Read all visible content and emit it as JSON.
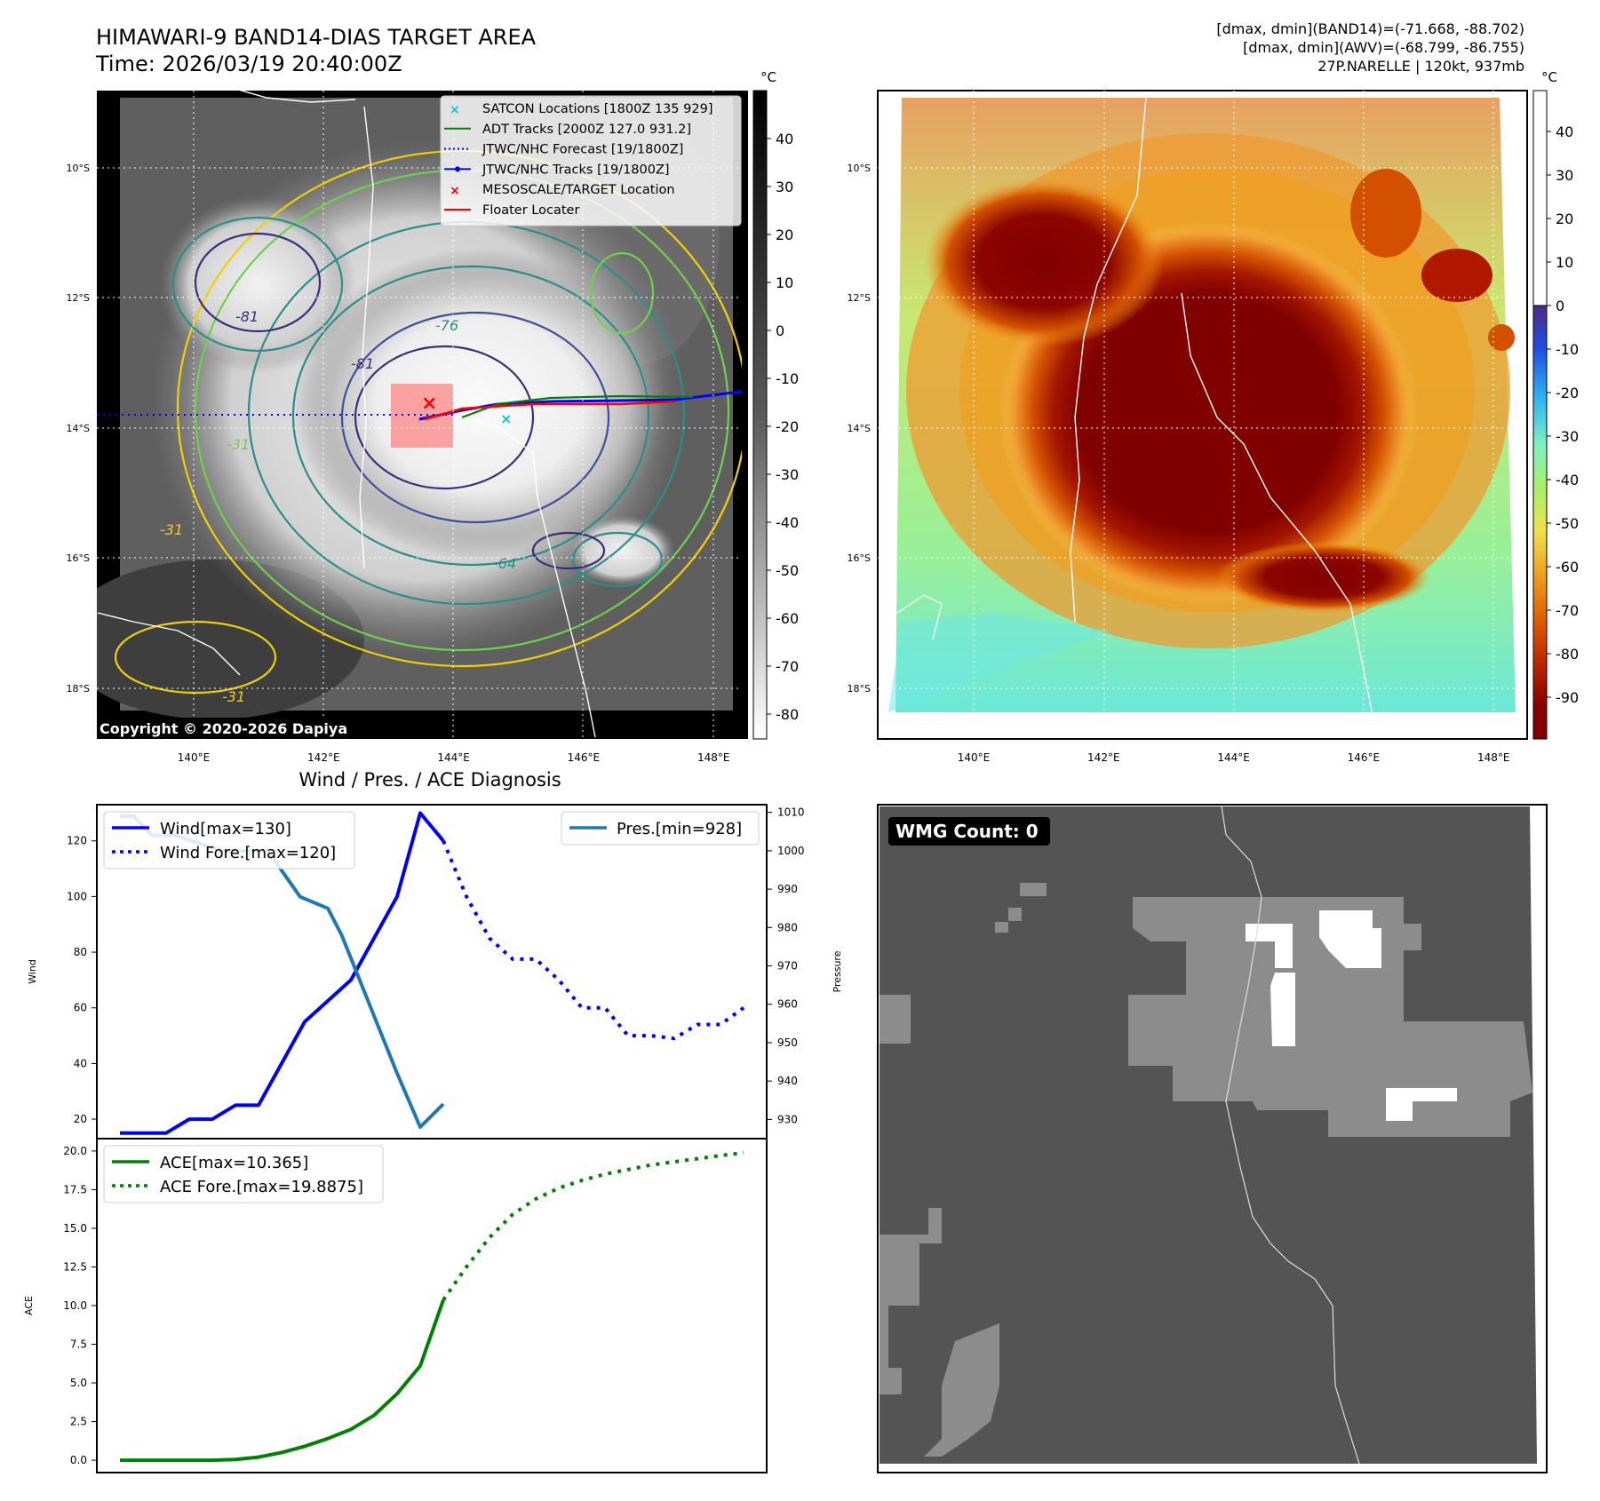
{
  "header": {
    "title_line1": "HIMAWARI-9 BAND14-DIAS TARGET AREA",
    "title_line2": "Time: 2026/03/19 20:40:00Z",
    "stats_line1": "[dmax, dmin](BAND14)=(-71.668, -88.702)",
    "stats_line2": "[dmax, dmin](AWV)=(-68.799, -86.755)",
    "stats_line3": "27P.NARELLE | 120kt, 937mb"
  },
  "map_axes": {
    "lat_labels": [
      "10°S",
      "12°S",
      "14°S",
      "16°S",
      "18°S"
    ],
    "lon_labels": [
      "140°E",
      "142°E",
      "144°E",
      "146°E",
      "148°E"
    ]
  },
  "band14_panel": {
    "copyright": "Copyright © 2020-2026 Dapiya",
    "colorbar_unit": "°C",
    "colorbar_ticks": [
      40,
      30,
      20,
      10,
      0,
      -10,
      -20,
      -30,
      -40,
      -50,
      -60,
      -70,
      -80
    ],
    "contour_labels": [
      "-81",
      "-81",
      "-76",
      "-64",
      "-31",
      "-31",
      "-31"
    ],
    "legend": [
      {
        "label": "SATCON Locations [1800Z 135 929]",
        "color": "#17becf",
        "marker": "x"
      },
      {
        "label": "ADT Tracks [2000Z 127.0 931.2]",
        "color": "#008000",
        "marker": "line"
      },
      {
        "label": "JTWC/NHC Forecast [19/1800Z]",
        "color": "#0000ff",
        "marker": "dotted"
      },
      {
        "label": "JTWC/NHC Tracks [19/1800Z]",
        "color": "#0000ff",
        "marker": "line-dot"
      },
      {
        "label": "MESOSCALE/TARGET Location",
        "color": "#ff0000",
        "marker": "x"
      },
      {
        "label": "Floater Locater",
        "color": "#ff0000",
        "marker": "line"
      }
    ]
  },
  "awv_panel": {
    "colorbar_unit": "°C",
    "colorbar_ticks": [
      40,
      30,
      20,
      10,
      0,
      -10,
      -20,
      -30,
      -40,
      -50,
      -60,
      -70,
      -80,
      -90
    ]
  },
  "wmg_panel": {
    "badge": "WMG Count: 0"
  },
  "chart_data": [
    {
      "type": "line",
      "title": "Wind / Pres. / ACE Diagnosis",
      "ylabel": "Wind",
      "y2label": "Pressure",
      "ylim": [
        13,
        133
      ],
      "y2lim": [
        925,
        1012
      ],
      "yticks": [
        20,
        40,
        60,
        80,
        100,
        120
      ],
      "y2ticks": [
        930,
        940,
        950,
        960,
        970,
        980,
        990,
        1000,
        1010
      ],
      "grid": false,
      "legend_left": [
        "Wind[max=130]",
        "Wind Fore.[max=120]"
      ],
      "legend_right": [
        "Pres.[min=928]"
      ],
      "series": [
        {
          "name": "Wind[max=130]",
          "axis": "left",
          "style": "solid",
          "color": "#0000ff",
          "x": [
            0,
            1,
            2,
            3,
            4,
            5,
            6,
            7,
            8,
            9,
            10,
            11,
            12,
            13,
            14
          ],
          "values": [
            15,
            15,
            15,
            20,
            20,
            25,
            25,
            40,
            55,
            62.5,
            70,
            85,
            100,
            130,
            120
          ]
        },
        {
          "name": "Wind Fore.[max=120]",
          "axis": "left",
          "style": "dotted",
          "color": "#0000ff",
          "x": [
            14,
            15,
            16,
            17,
            18,
            19,
            20,
            21,
            22,
            23,
            24,
            25,
            26,
            27
          ],
          "values": [
            120,
            100,
            85,
            77.5,
            77.5,
            70,
            60,
            60,
            50,
            50,
            49,
            54,
            54,
            60
          ]
        },
        {
          "name": "Pres.[min=928]",
          "axis": "right",
          "style": "solid",
          "color": "#1f77b4",
          "x": [
            0,
            0.6,
            1.4,
            2.4,
            3.4,
            4.4,
            5.4,
            6.4,
            7.8,
            9,
            9.6,
            10.4,
            11,
            12,
            13,
            14
          ],
          "values": [
            1009,
            1009,
            1004,
            1004,
            1002,
            1000,
            1000,
            1000,
            988,
            985,
            978,
            966,
            957,
            942,
            928,
            934
          ]
        }
      ]
    },
    {
      "type": "line",
      "ylabel": "ACE",
      "ylim": [
        -0.8,
        20.8
      ],
      "yticks": [
        0.0,
        2.5,
        5.0,
        7.5,
        10.0,
        12.5,
        15.0,
        17.5,
        20.0
      ],
      "grid": false,
      "legend": [
        "ACE[max=10.365]",
        "ACE Fore.[max=19.8875]"
      ],
      "series": [
        {
          "name": "ACE[max=10.365]",
          "style": "solid",
          "color": "#008000",
          "x": [
            0,
            1,
            2,
            3,
            4,
            5,
            6,
            7,
            8,
            9,
            10,
            11,
            12,
            13,
            14
          ],
          "values": [
            0,
            0,
            0,
            0,
            0,
            0.05,
            0.2,
            0.5,
            0.9,
            1.4,
            2.0,
            2.9,
            4.3,
            6.1,
            10.365
          ]
        },
        {
          "name": "ACE Fore.[max=19.8875]",
          "style": "dotted",
          "color": "#008000",
          "x": [
            14,
            15,
            16,
            17,
            18,
            19,
            20,
            21,
            22,
            23,
            24,
            25,
            26,
            27
          ],
          "values": [
            10.365,
            12.5,
            14.4,
            15.9,
            16.9,
            17.6,
            18.1,
            18.5,
            18.8,
            19.1,
            19.3,
            19.5,
            19.7,
            19.8875
          ]
        }
      ]
    }
  ]
}
